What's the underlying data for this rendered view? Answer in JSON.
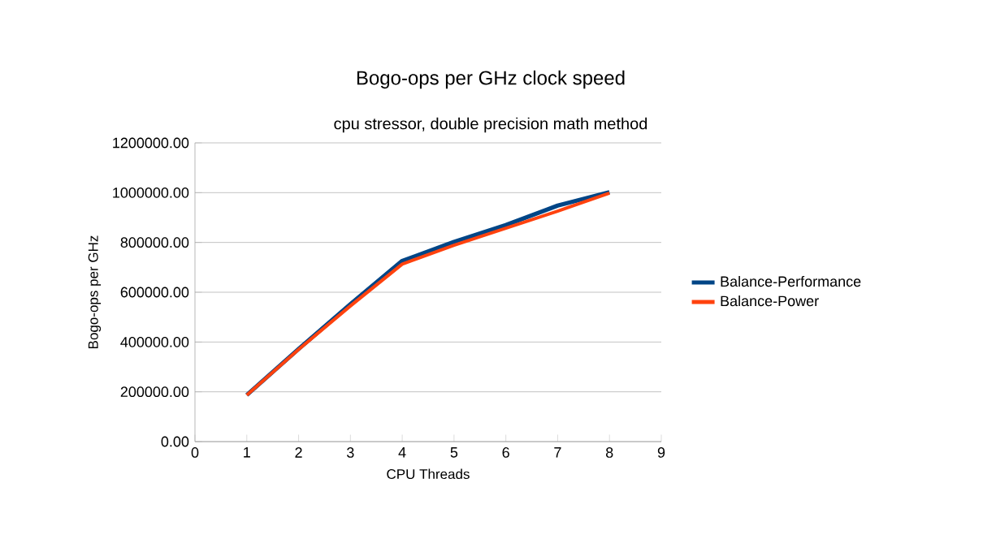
{
  "chart_data": {
    "type": "line",
    "title": "Bogo-ops per GHz clock speed",
    "subtitle": "cpu stressor, double precision math method",
    "xlabel": "CPU Threads",
    "ylabel": "Bogo-ops per GHz",
    "x": [
      1,
      2,
      3,
      4,
      5,
      6,
      7,
      8
    ],
    "series": [
      {
        "name": "Balance-Performance",
        "color": "#004586",
        "values": [
          187000,
          372000,
          552000,
          726000,
          802000,
          870000,
          948000,
          1002000
        ]
      },
      {
        "name": "Balance-Power",
        "color": "#ff420e",
        "values": [
          187000,
          370000,
          545000,
          713000,
          789000,
          857000,
          926000,
          998000
        ]
      }
    ],
    "xlim": [
      0,
      9
    ],
    "xticks": [
      0,
      1,
      2,
      3,
      4,
      5,
      6,
      7,
      8,
      9
    ],
    "ylim": [
      0,
      1200000
    ],
    "yticks": [
      {
        "value": 0,
        "label": "0.00"
      },
      {
        "value": 200000,
        "label": "200000.00"
      },
      {
        "value": 400000,
        "label": "400000.00"
      },
      {
        "value": 600000,
        "label": "600000.00"
      },
      {
        "value": 800000,
        "label": "800000.00"
      },
      {
        "value": 1000000,
        "label": "1000000.00"
      },
      {
        "value": 1200000,
        "label": "1200000.00"
      }
    ],
    "grid": "y",
    "legend": "right",
    "marker": "none",
    "line_style": "solid"
  }
}
